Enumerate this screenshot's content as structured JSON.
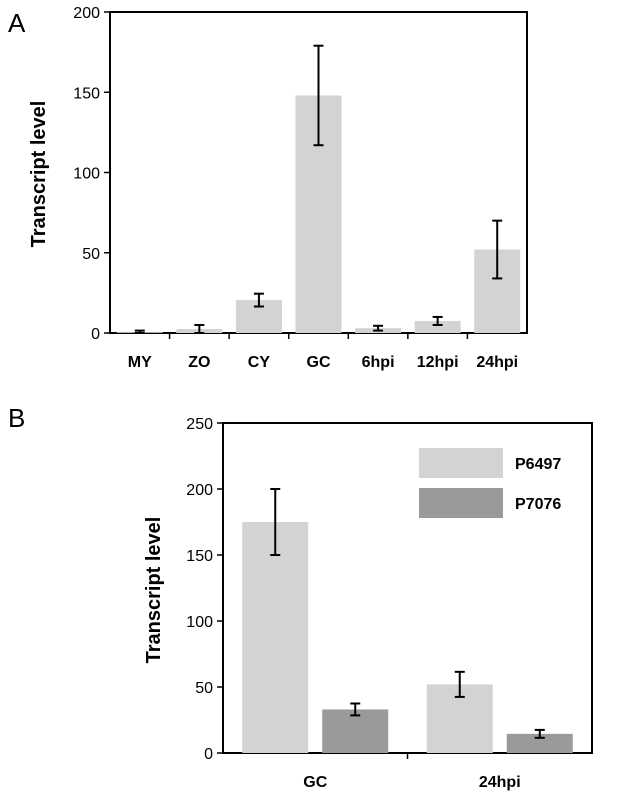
{
  "chart_data": [
    {
      "type": "bar",
      "panel_label": "A",
      "ylabel": "Transcript level",
      "xlabel": "",
      "ylim": [
        0,
        200
      ],
      "yticks": [
        "0",
        "50",
        "100",
        "150",
        "200"
      ],
      "categories": [
        "MY",
        "ZO",
        "CY",
        "GC",
        "6hpi",
        "12hpi",
        "24hpi"
      ],
      "series": [
        {
          "values": [
            0.5,
            2.5,
            20.5,
            148,
            3,
            7.5,
            52
          ],
          "errors": [
            1,
            2.5,
            4,
            31,
            1.5,
            2.5,
            18
          ],
          "color": "#d3d3d3"
        }
      ]
    },
    {
      "type": "bar",
      "panel_label": "B",
      "ylabel": "Transcript level",
      "xlabel": "",
      "ylim": [
        0,
        250
      ],
      "yticks": [
        "0",
        "50",
        "100",
        "150",
        "200",
        "250"
      ],
      "categories": [
        "GC",
        "24hpi"
      ],
      "legend_position": "top-right",
      "series": [
        {
          "name": "P6497",
          "values": [
            175,
            52
          ],
          "errors": [
            25,
            9.5
          ],
          "color": "#d3d3d3"
        },
        {
          "name": "P7076",
          "values": [
            33,
            14.5
          ],
          "errors": [
            4.5,
            3
          ],
          "color": "#9a9a9a"
        }
      ]
    }
  ]
}
